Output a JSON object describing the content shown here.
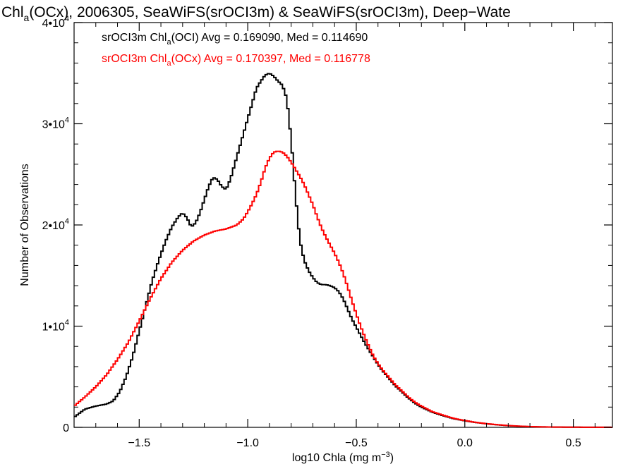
{
  "chart_data": {
    "type": "line",
    "step": true,
    "title": {
      "prefix": "Chl",
      "sub": "a",
      "suffix": "(OCx), 2006305, SeaWiFS(srOCI3m) & SeaWiFS(srOCI3m), Deep−Wate"
    },
    "xlabel": {
      "prefix": "log10 Chla (mg m",
      "sup": "−3",
      "suffix": ")"
    },
    "ylabel": "Number of Observations",
    "xlim": [
      -1.8,
      0.68
    ],
    "ylim": [
      0,
      40000
    ],
    "xticks": [
      {
        "value": -1.5,
        "label": "−1.5"
      },
      {
        "value": -1.0,
        "label": "−1.0"
      },
      {
        "value": -0.5,
        "label": "−0.5"
      },
      {
        "value": 0.0,
        "label": "0.0"
      },
      {
        "value": 0.5,
        "label": "0.5"
      }
    ],
    "yticks": [
      {
        "value": 0,
        "label": "0",
        "mant": "0",
        "exp": ""
      },
      {
        "value": 10000,
        "label": "1•10⁴",
        "mant": "1•10",
        "exp": "4"
      },
      {
        "value": 20000,
        "label": "2•10⁴",
        "mant": "2•10",
        "exp": "4"
      },
      {
        "value": 30000,
        "label": "3•10⁴",
        "mant": "3•10",
        "exp": "4"
      },
      {
        "value": 40000,
        "label": "4•10⁴",
        "mant": "4•10",
        "exp": "4"
      }
    ],
    "grid": false,
    "legend_position": "top-left",
    "series": [
      {
        "name": "srOCI3m Chl(OCI)",
        "legend": {
          "pre": "srOCI3m Chl",
          "sub": "a",
          "post": "(OCI) Avg = 0.169090, Med = 0.114690"
        },
        "color": "#000000",
        "points": [
          [
            -1.8,
            1000
          ],
          [
            -1.75,
            1800
          ],
          [
            -1.7,
            2100
          ],
          [
            -1.65,
            2300
          ],
          [
            -1.62,
            2600
          ],
          [
            -1.59,
            3500
          ],
          [
            -1.56,
            5000
          ],
          [
            -1.53,
            7000
          ],
          [
            -1.5,
            9500
          ],
          [
            -1.47,
            12000
          ],
          [
            -1.44,
            14500
          ],
          [
            -1.41,
            16500
          ],
          [
            -1.38,
            18300
          ],
          [
            -1.35,
            19800
          ],
          [
            -1.32,
            20800
          ],
          [
            -1.3,
            21200
          ],
          [
            -1.28,
            20700
          ],
          [
            -1.26,
            19800
          ],
          [
            -1.24,
            20200
          ],
          [
            -1.22,
            21200
          ],
          [
            -1.2,
            22500
          ],
          [
            -1.18,
            23800
          ],
          [
            -1.16,
            24700
          ],
          [
            -1.14,
            24500
          ],
          [
            -1.12,
            23800
          ],
          [
            -1.1,
            23500
          ],
          [
            -1.08,
            24500
          ],
          [
            -1.06,
            26000
          ],
          [
            -1.04,
            27500
          ],
          [
            -1.02,
            29000
          ],
          [
            -1.0,
            30500
          ],
          [
            -0.98,
            32000
          ],
          [
            -0.96,
            33500
          ],
          [
            -0.94,
            34200
          ],
          [
            -0.92,
            34800
          ],
          [
            -0.9,
            35000
          ],
          [
            -0.88,
            34700
          ],
          [
            -0.86,
            34200
          ],
          [
            -0.84,
            33800
          ],
          [
            -0.82,
            32500
          ],
          [
            -0.8,
            28500
          ],
          [
            -0.78,
            23000
          ],
          [
            -0.76,
            18500
          ],
          [
            -0.74,
            16500
          ],
          [
            -0.72,
            15500
          ],
          [
            -0.7,
            14800
          ],
          [
            -0.68,
            14300
          ],
          [
            -0.66,
            14100
          ],
          [
            -0.64,
            14100
          ],
          [
            -0.62,
            14000
          ],
          [
            -0.6,
            13800
          ],
          [
            -0.58,
            13400
          ],
          [
            -0.56,
            12700
          ],
          [
            -0.54,
            11700
          ],
          [
            -0.52,
            10700
          ],
          [
            -0.5,
            9900
          ],
          [
            -0.48,
            9100
          ],
          [
            -0.46,
            8300
          ],
          [
            -0.44,
            7600
          ],
          [
            -0.42,
            6900
          ],
          [
            -0.4,
            6200
          ],
          [
            -0.38,
            5600
          ],
          [
            -0.36,
            5100
          ],
          [
            -0.34,
            4600
          ],
          [
            -0.32,
            4100
          ],
          [
            -0.3,
            3700
          ],
          [
            -0.28,
            3300
          ],
          [
            -0.26,
            2900
          ],
          [
            -0.24,
            2550
          ],
          [
            -0.22,
            2250
          ],
          [
            -0.2,
            2000
          ],
          [
            -0.15,
            1500
          ],
          [
            -0.1,
            1150
          ],
          [
            -0.05,
            850
          ],
          [
            0.0,
            650
          ],
          [
            0.05,
            480
          ],
          [
            0.1,
            350
          ],
          [
            0.15,
            250
          ],
          [
            0.2,
            170
          ],
          [
            0.25,
            110
          ],
          [
            0.3,
            70
          ],
          [
            0.35,
            45
          ],
          [
            0.4,
            30
          ],
          [
            0.5,
            15
          ],
          [
            0.6,
            8
          ],
          [
            0.68,
            4
          ]
        ]
      },
      {
        "name": "srOCI3m Chl(OCx)",
        "legend": {
          "pre": "srOCI3m Chl",
          "sub": "a",
          "post": "(OCx) Avg = 0.170397, Med = 0.116778"
        },
        "color": "#ff0000",
        "points": [
          [
            -1.8,
            2100
          ],
          [
            -1.75,
            3000
          ],
          [
            -1.7,
            4000
          ],
          [
            -1.65,
            5200
          ],
          [
            -1.6,
            6700
          ],
          [
            -1.55,
            8400
          ],
          [
            -1.5,
            10500
          ],
          [
            -1.45,
            12700
          ],
          [
            -1.4,
            14700
          ],
          [
            -1.35,
            16300
          ],
          [
            -1.3,
            17500
          ],
          [
            -1.25,
            18400
          ],
          [
            -1.2,
            19000
          ],
          [
            -1.15,
            19400
          ],
          [
            -1.1,
            19600
          ],
          [
            -1.05,
            20000
          ],
          [
            -1.02,
            20600
          ],
          [
            -1.0,
            21300
          ],
          [
            -0.98,
            22100
          ],
          [
            -0.96,
            23000
          ],
          [
            -0.94,
            24200
          ],
          [
            -0.92,
            25600
          ],
          [
            -0.9,
            26600
          ],
          [
            -0.88,
            27200
          ],
          [
            -0.86,
            27300
          ],
          [
            -0.84,
            27200
          ],
          [
            -0.82,
            26800
          ],
          [
            -0.8,
            26200
          ],
          [
            -0.78,
            25500
          ],
          [
            -0.76,
            24800
          ],
          [
            -0.74,
            24000
          ],
          [
            -0.72,
            23000
          ],
          [
            -0.7,
            22000
          ],
          [
            -0.68,
            20800
          ],
          [
            -0.66,
            19700
          ],
          [
            -0.64,
            18800
          ],
          [
            -0.62,
            18000
          ],
          [
            -0.6,
            17200
          ],
          [
            -0.58,
            16300
          ],
          [
            -0.56,
            15200
          ],
          [
            -0.54,
            13900
          ],
          [
            -0.52,
            12500
          ],
          [
            -0.5,
            11200
          ],
          [
            -0.48,
            10000
          ],
          [
            -0.46,
            8900
          ],
          [
            -0.44,
            7900
          ],
          [
            -0.42,
            7000
          ],
          [
            -0.4,
            6300
          ],
          [
            -0.38,
            5700
          ],
          [
            -0.36,
            5200
          ],
          [
            -0.34,
            4700
          ],
          [
            -0.32,
            4200
          ],
          [
            -0.3,
            3800
          ],
          [
            -0.28,
            3400
          ],
          [
            -0.26,
            3000
          ],
          [
            -0.24,
            2650
          ],
          [
            -0.22,
            2350
          ],
          [
            -0.2,
            2100
          ],
          [
            -0.15,
            1550
          ],
          [
            -0.1,
            1200
          ],
          [
            -0.05,
            880
          ],
          [
            0.0,
            670
          ],
          [
            0.05,
            490
          ],
          [
            0.1,
            360
          ],
          [
            0.15,
            260
          ],
          [
            0.2,
            175
          ],
          [
            0.25,
            115
          ],
          [
            0.3,
            75
          ],
          [
            0.35,
            48
          ],
          [
            0.4,
            32
          ],
          [
            0.5,
            16
          ],
          [
            0.6,
            9
          ],
          [
            0.68,
            5
          ]
        ]
      }
    ]
  }
}
